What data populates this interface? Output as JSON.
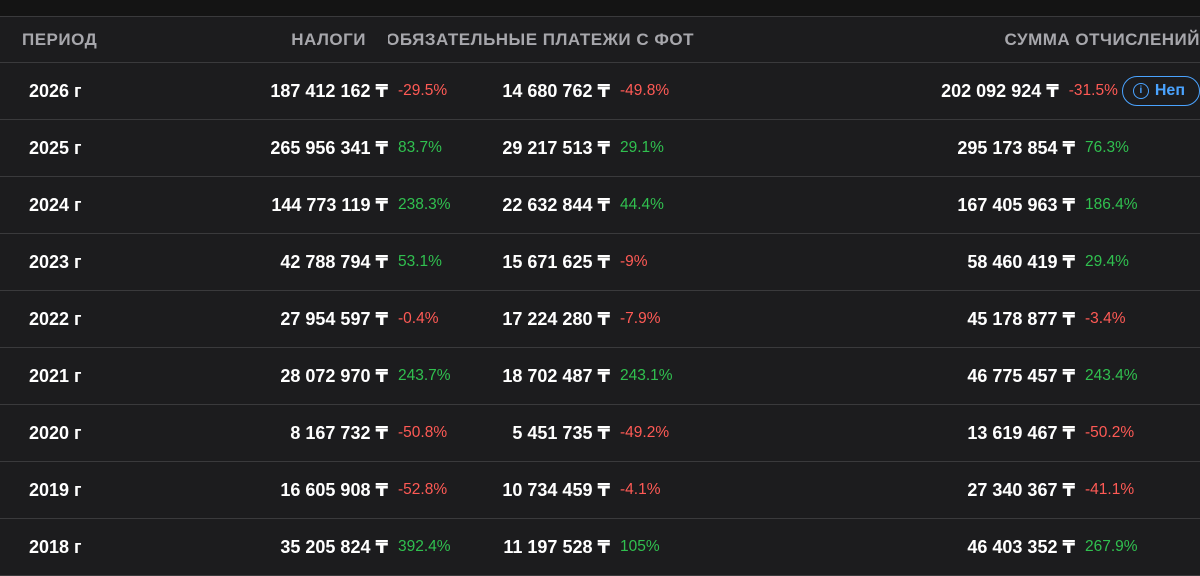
{
  "headers": {
    "period": "ПЕРИОД",
    "taxes": "НАЛОГИ",
    "payroll": "ОБЯЗАТЕЛЬНЫЕ ПЛАТЕЖИ С ФОТ",
    "total": "СУММА ОТЧИСЛЕНИЙ"
  },
  "badge": {
    "label": "Неп",
    "icon": "info-icon"
  },
  "colors": {
    "positive": "#30c04f",
    "negative": "#ff5a55",
    "badge": "#4aa3ff"
  },
  "rows": [
    {
      "period": "2026 г",
      "taxes": "187 412 162 ₸",
      "taxes_pct": "-29.5%",
      "payroll": "14 680 762 ₸",
      "payroll_pct": "-49.8%",
      "total": "202 092 924 ₸",
      "total_pct": "-31.5%"
    },
    {
      "period": "2025 г",
      "taxes": "265 956 341 ₸",
      "taxes_pct": "83.7%",
      "payroll": "29 217 513 ₸",
      "payroll_pct": "29.1%",
      "total": "295 173 854 ₸",
      "total_pct": "76.3%"
    },
    {
      "period": "2024 г",
      "taxes": "144 773 119 ₸",
      "taxes_pct": "238.3%",
      "payroll": "22 632 844 ₸",
      "payroll_pct": "44.4%",
      "total": "167 405 963 ₸",
      "total_pct": "186.4%"
    },
    {
      "period": "2023 г",
      "taxes": "42 788 794 ₸",
      "taxes_pct": "53.1%",
      "payroll": "15 671 625 ₸",
      "payroll_pct": "-9%",
      "total": "58 460 419 ₸",
      "total_pct": "29.4%"
    },
    {
      "period": "2022 г",
      "taxes": "27 954 597 ₸",
      "taxes_pct": "-0.4%",
      "payroll": "17 224 280 ₸",
      "payroll_pct": "-7.9%",
      "total": "45 178 877 ₸",
      "total_pct": "-3.4%"
    },
    {
      "period": "2021 г",
      "taxes": "28 072 970 ₸",
      "taxes_pct": "243.7%",
      "payroll": "18 702 487 ₸",
      "payroll_pct": "243.1%",
      "total": "46 775 457 ₸",
      "total_pct": "243.4%"
    },
    {
      "period": "2020 г",
      "taxes": "8 167 732 ₸",
      "taxes_pct": "-50.8%",
      "payroll": "5 451 735 ₸",
      "payroll_pct": "-49.2%",
      "total": "13 619 467 ₸",
      "total_pct": "-50.2%"
    },
    {
      "period": "2019 г",
      "taxes": "16 605 908 ₸",
      "taxes_pct": "-52.8%",
      "payroll": "10 734 459 ₸",
      "payroll_pct": "-4.1%",
      "total": "27 340 367 ₸",
      "total_pct": "-41.1%"
    },
    {
      "period": "2018 г",
      "taxes": "35 205 824 ₸",
      "taxes_pct": "392.4%",
      "payroll": "11 197 528 ₸",
      "payroll_pct": "105%",
      "total": "46 403 352 ₸",
      "total_pct": "267.9%"
    }
  ]
}
